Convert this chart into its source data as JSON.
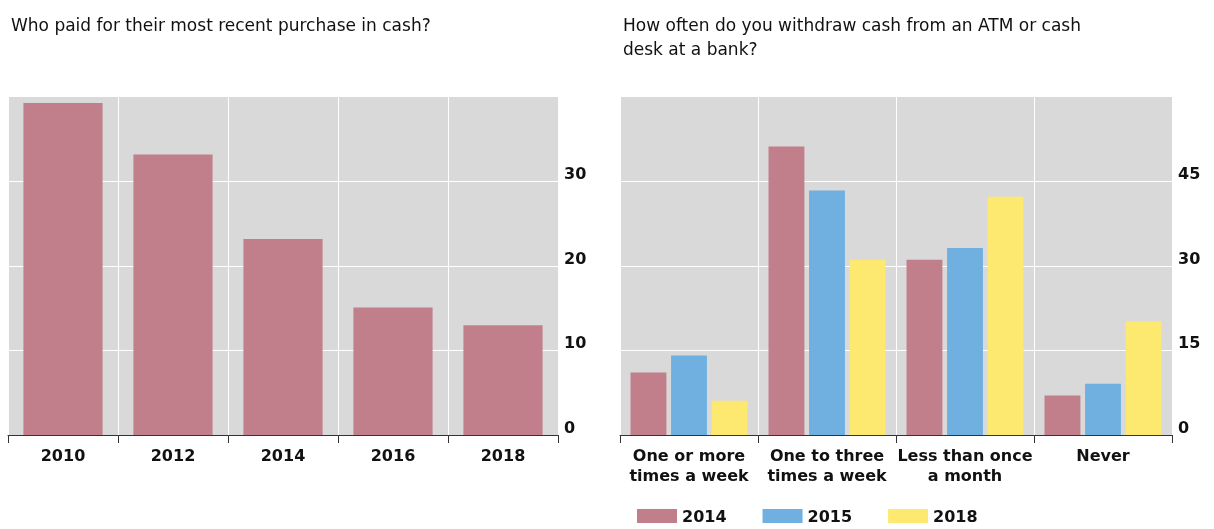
{
  "chart_data": [
    {
      "type": "bar",
      "title": "Who paid for their most recent purchase in cash?",
      "categories": [
        "2010",
        "2012",
        "2014",
        "2016",
        "2018"
      ],
      "values": [
        39.3,
        33.2,
        23.2,
        15.1,
        13.0
      ],
      "color": "#c17f8c",
      "ylim": [
        0,
        40
      ],
      "yticks": [
        0,
        10,
        20,
        30
      ],
      "grid": true,
      "legend": false
    },
    {
      "type": "bar",
      "title": "How often do you withdraw cash from an ATM or cash desk at a bank?",
      "categories": [
        "One or more times a week",
        "One to three times a week",
        "Less than once a month",
        "Never"
      ],
      "series": [
        {
          "name": "2014",
          "color": "#c17f8c",
          "values": [
            11.1,
            51.2,
            31.1,
            7.0
          ]
        },
        {
          "name": "2015",
          "color": "#6fb0e0",
          "values": [
            14.1,
            43.4,
            33.2,
            9.1
          ]
        },
        {
          "name": "2018",
          "color": "#fde96f",
          "values": [
            6.1,
            31.1,
            42.3,
            20.2
          ]
        }
      ],
      "ylim": [
        0,
        60
      ],
      "yticks": [
        0,
        15,
        30,
        45
      ],
      "grid": true,
      "legend": "bottom"
    }
  ]
}
